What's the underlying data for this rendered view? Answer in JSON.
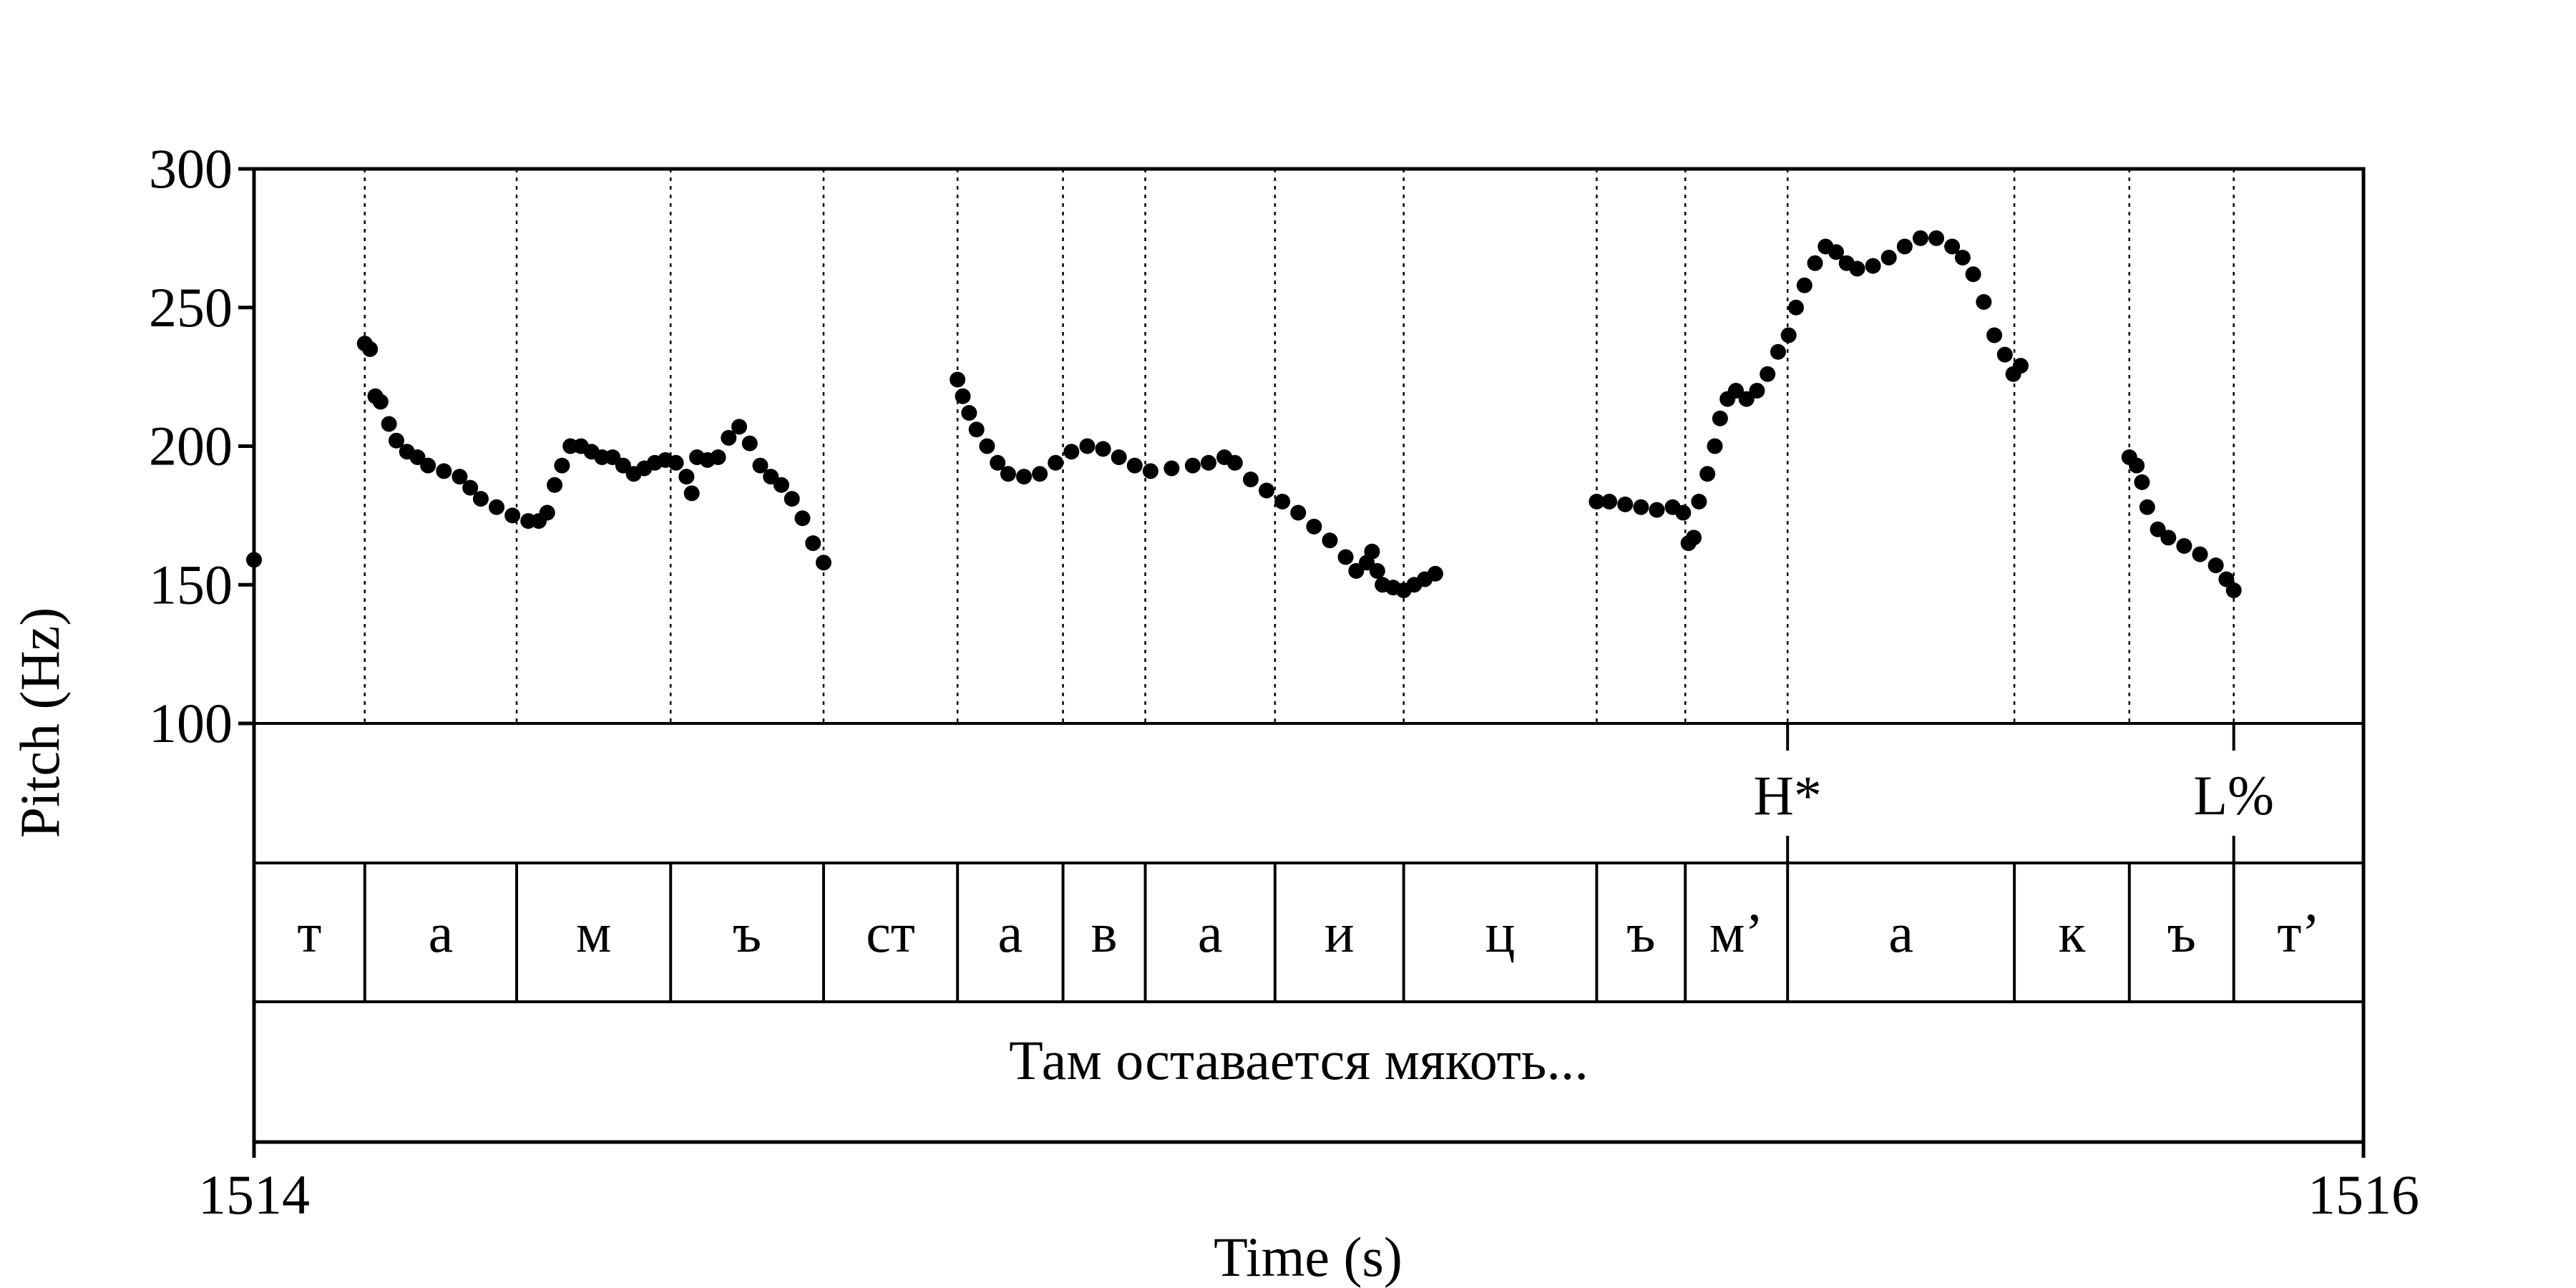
{
  "chart_data": {
    "type": "scatter",
    "xlabel": "Time (s)",
    "ylabel": "Pitch (Hz)",
    "xlim": [
      1514,
      1516
    ],
    "ylim": [
      100,
      300
    ],
    "xticks": [
      "1514",
      "1516"
    ],
    "yticks": [
      "100",
      "150",
      "200",
      "250",
      "300"
    ],
    "grid": false,
    "boundaries": [
      1514.105,
      1514.249,
      1514.395,
      1514.54,
      1514.667,
      1514.767,
      1514.845,
      1514.968,
      1515.09,
      1515.273,
      1515.357,
      1515.454,
      1515.669,
      1515.778,
      1515.877
    ],
    "phones": [
      "т",
      "а",
      "м",
      "ъ",
      "ст",
      "а",
      "в",
      "а",
      "и",
      "ц",
      "ъ",
      "м’",
      "а",
      "к",
      "ъ",
      "т’"
    ],
    "tones": [
      {
        "time": 1515.454,
        "label": "H*"
      },
      {
        "time": 1515.877,
        "label": "L%"
      }
    ],
    "sentence": "Там оставается мякоть...",
    "series": [
      {
        "segments": [
          [
            [
              1514.0,
              159
            ]
          ],
          [
            [
              1514.105,
              237
            ],
            [
              1514.11,
              235
            ],
            [
              1514.115,
              218
            ],
            [
              1514.12,
              216
            ],
            [
              1514.128,
              208
            ],
            [
              1514.135,
              202
            ],
            [
              1514.145,
              198
            ],
            [
              1514.155,
              196
            ],
            [
              1514.165,
              193
            ],
            [
              1514.18,
              191
            ],
            [
              1514.195,
              189
            ],
            [
              1514.205,
              185
            ],
            [
              1514.215,
              181
            ],
            [
              1514.23,
              178
            ],
            [
              1514.245,
              175
            ],
            [
              1514.26,
              173
            ],
            [
              1514.27,
              173
            ],
            [
              1514.278,
              176
            ],
            [
              1514.285,
              186
            ],
            [
              1514.292,
              193
            ],
            [
              1514.3,
              200
            ],
            [
              1514.31,
              200
            ],
            [
              1514.32,
              198
            ],
            [
              1514.33,
              196
            ],
            [
              1514.34,
              196
            ],
            [
              1514.35,
              193
            ],
            [
              1514.36,
              190
            ],
            [
              1514.37,
              192
            ],
            [
              1514.38,
              194
            ],
            [
              1514.39,
              195
            ],
            [
              1514.4,
              194
            ],
            [
              1514.41,
              189
            ],
            [
              1514.415,
              183
            ],
            [
              1514.42,
              196
            ],
            [
              1514.43,
              195
            ],
            [
              1514.44,
              196
            ],
            [
              1514.45,
              203
            ],
            [
              1514.46,
              207
            ],
            [
              1514.47,
              201
            ],
            [
              1514.48,
              193
            ],
            [
              1514.49,
              189
            ],
            [
              1514.5,
              186
            ],
            [
              1514.51,
              181
            ],
            [
              1514.52,
              174
            ],
            [
              1514.53,
              165
            ],
            [
              1514.54,
              158
            ]
          ],
          [
            [
              1514.667,
              224
            ],
            [
              1514.672,
              218
            ],
            [
              1514.678,
              212
            ],
            [
              1514.685,
              206
            ],
            [
              1514.695,
              200
            ],
            [
              1514.705,
              194
            ],
            [
              1514.715,
              190
            ],
            [
              1514.73,
              189
            ],
            [
              1514.745,
              190
            ],
            [
              1514.76,
              194
            ],
            [
              1514.775,
              198
            ],
            [
              1514.79,
              200
            ],
            [
              1514.805,
              199
            ],
            [
              1514.82,
              196
            ],
            [
              1514.835,
              193
            ],
            [
              1514.85,
              191
            ],
            [
              1514.87,
              192
            ],
            [
              1514.89,
              193
            ],
            [
              1514.905,
              194
            ],
            [
              1514.92,
              196
            ],
            [
              1514.93,
              194
            ],
            [
              1514.945,
              188
            ],
            [
              1514.96,
              184
            ],
            [
              1514.975,
              180
            ],
            [
              1514.99,
              176
            ],
            [
              1515.005,
              171
            ],
            [
              1515.02,
              166
            ],
            [
              1515.035,
              160
            ],
            [
              1515.045,
              155
            ],
            [
              1515.055,
              158
            ],
            [
              1515.06,
              162
            ],
            [
              1515.065,
              155
            ],
            [
              1515.07,
              150
            ],
            [
              1515.08,
              149
            ],
            [
              1515.09,
              148
            ],
            [
              1515.1,
              150
            ],
            [
              1515.11,
              152
            ],
            [
              1515.12,
              154
            ]
          ],
          [
            [
              1515.273,
              180
            ],
            [
              1515.285,
              180
            ],
            [
              1515.3,
              179
            ],
            [
              1515.315,
              178
            ],
            [
              1515.33,
              177
            ],
            [
              1515.345,
              178
            ],
            [
              1515.355,
              176
            ],
            [
              1515.36,
              165
            ],
            [
              1515.365,
              167
            ],
            [
              1515.37,
              180
            ],
            [
              1515.378,
              190
            ],
            [
              1515.385,
              200
            ],
            [
              1515.39,
              210
            ],
            [
              1515.397,
              217
            ],
            [
              1515.405,
              220
            ],
            [
              1515.415,
              217
            ],
            [
              1515.425,
              220
            ],
            [
              1515.435,
              226
            ],
            [
              1515.445,
              234
            ],
            [
              1515.455,
              240
            ],
            [
              1515.462,
              250
            ],
            [
              1515.47,
              258
            ],
            [
              1515.48,
              266
            ],
            [
              1515.49,
              272
            ],
            [
              1515.5,
              270
            ],
            [
              1515.51,
              266
            ],
            [
              1515.52,
              264
            ],
            [
              1515.535,
              265
            ],
            [
              1515.55,
              268
            ],
            [
              1515.565,
              272
            ],
            [
              1515.58,
              275
            ],
            [
              1515.595,
              275
            ],
            [
              1515.61,
              272
            ],
            [
              1515.62,
              268
            ],
            [
              1515.63,
              262
            ],
            [
              1515.64,
              252
            ],
            [
              1515.65,
              240
            ],
            [
              1515.66,
              233
            ],
            [
              1515.668,
              226
            ],
            [
              1515.675,
              229
            ]
          ],
          [
            [
              1515.778,
              196
            ],
            [
              1515.785,
              193
            ],
            [
              1515.79,
              187
            ],
            [
              1515.795,
              178
            ],
            [
              1515.805,
              170
            ],
            [
              1515.815,
              167
            ],
            [
              1515.83,
              164
            ],
            [
              1515.845,
              161
            ],
            [
              1515.86,
              157
            ],
            [
              1515.87,
              152
            ],
            [
              1515.877,
              148
            ]
          ]
        ]
      }
    ]
  }
}
